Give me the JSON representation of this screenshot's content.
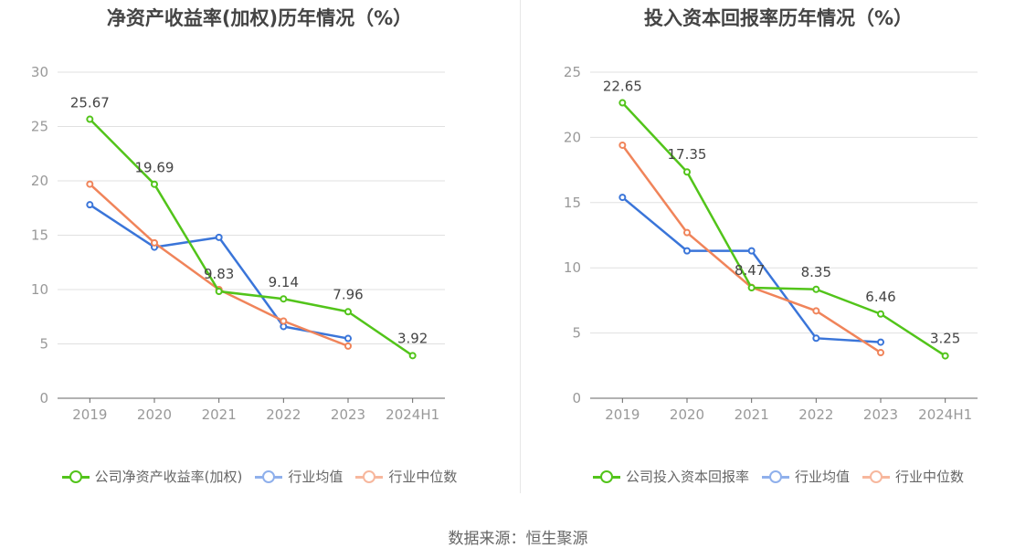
{
  "source": "数据来源：恒生聚源",
  "chart_data": [
    {
      "type": "line",
      "title": "净资产收益率(加权)历年情况（%）",
      "categories": [
        "2019",
        "2020",
        "2021",
        "2022",
        "2023",
        "2024H1"
      ],
      "ylim": [
        0,
        30
      ],
      "yticks": [
        0,
        5,
        10,
        15,
        20,
        25,
        30
      ],
      "grid": true,
      "legend_position": "bottom",
      "series": [
        {
          "name": "公司净资产收益率(加权)",
          "color": "#52c41a",
          "values": [
            25.67,
            19.69,
            9.83,
            9.14,
            7.96,
            3.92
          ],
          "labels": [
            "25.67",
            "19.69",
            "9.83",
            "9.14",
            "7.96",
            "3.92"
          ]
        },
        {
          "name": "行业均值",
          "color": "#3a75d9",
          "values": [
            17.8,
            13.9,
            14.8,
            6.6,
            5.5,
            null
          ]
        },
        {
          "name": "行业中位数",
          "color": "#f0845a",
          "values": [
            19.7,
            14.3,
            10.0,
            7.1,
            4.8,
            null
          ]
        }
      ]
    },
    {
      "type": "line",
      "title": "投入资本回报率历年情况（%）",
      "categories": [
        "2019",
        "2020",
        "2021",
        "2022",
        "2023",
        "2024H1"
      ],
      "ylim": [
        0,
        25
      ],
      "yticks": [
        0,
        5,
        10,
        15,
        20,
        25
      ],
      "grid": true,
      "legend_position": "bottom",
      "series": [
        {
          "name": "公司投入资本回报率",
          "color": "#52c41a",
          "values": [
            22.65,
            17.35,
            8.47,
            8.35,
            6.46,
            3.25
          ],
          "labels": [
            "22.65",
            "17.35",
            "8.47",
            "8.35",
            "6.46",
            "3.25"
          ]
        },
        {
          "name": "行业均值",
          "color": "#3a75d9",
          "values": [
            15.4,
            11.3,
            11.3,
            4.6,
            4.3,
            null
          ]
        },
        {
          "name": "行业中位数",
          "color": "#f0845a",
          "values": [
            19.4,
            12.7,
            8.5,
            6.7,
            3.5,
            null
          ]
        }
      ]
    }
  ]
}
